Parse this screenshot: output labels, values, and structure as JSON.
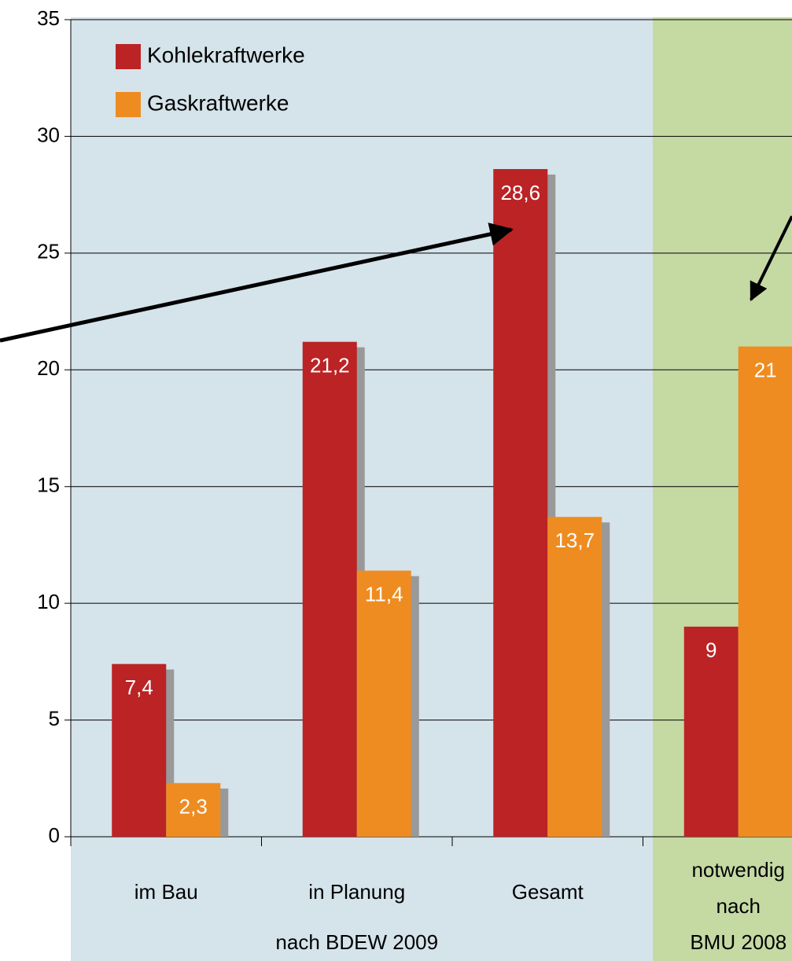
{
  "chart_data": {
    "type": "bar",
    "categories": [
      "im Bau",
      "in Planung",
      "Gesamt",
      "notwendig\nnach\nBMU 2008"
    ],
    "group_label": "nach BDEW 2009",
    "series": [
      {
        "name": "Kohlekraftwerke",
        "color": "#bb2325",
        "values": [
          7.4,
          21.2,
          28.6,
          9
        ],
        "value_labels": [
          "7,4",
          "21,2",
          "28,6",
          "9"
        ]
      },
      {
        "name": "Gaskraftwerke",
        "color": "#ee8c21",
        "values": [
          2.3,
          11.4,
          13.7,
          21
        ],
        "value_labels": [
          "2,3",
          "11,4",
          "13,7",
          "21"
        ]
      }
    ],
    "ylim": [
      0,
      35
    ],
    "yticks": [
      0,
      5,
      10,
      15,
      20,
      25,
      30,
      35
    ],
    "grid": true
  }
}
